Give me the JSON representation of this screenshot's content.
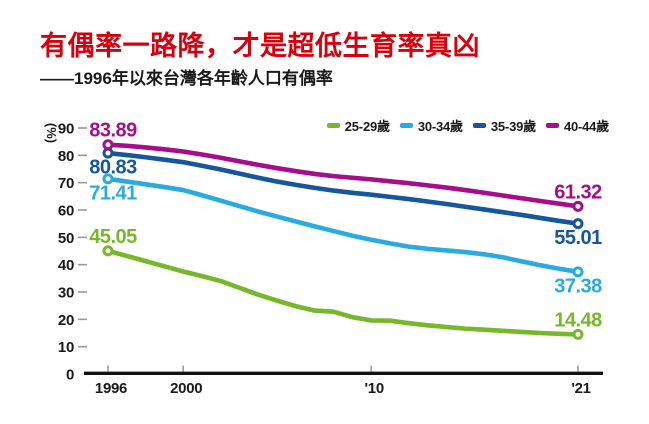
{
  "header": {
    "title": "有偶率一路降，才是超低生育率真凶",
    "subtitle": "——1996年以來台灣各年齡人口有偶率"
  },
  "colors": {
    "title_red": "#d7000f",
    "axis_black": "#111111",
    "tick_gray": "#999999",
    "green": "#76b82a",
    "cyan": "#29abe2",
    "dark_blue": "#15569c",
    "magenta": "#a60d8a"
  },
  "chart_data": {
    "type": "line",
    "title": "有偶率一路降，才是超低生育率真凶",
    "subtitle": "——1996年以來台灣各年齡人口有偶率",
    "unit_label": "(%)",
    "ylim": [
      0,
      90
    ],
    "y_ticks": [
      0,
      10,
      20,
      30,
      40,
      50,
      60,
      70,
      80,
      90
    ],
    "grid": false,
    "legend_position": "top-right",
    "x": [
      1996,
      1997,
      1998,
      1999,
      2000,
      2001,
      2002,
      2003,
      2004,
      2005,
      2006,
      2007,
      2008,
      2009,
      2010,
      2011,
      2012,
      2013,
      2014,
      2015,
      2016,
      2017,
      2018,
      2019,
      2020,
      2021
    ],
    "x_ticks": [
      {
        "year": 1996,
        "label": "1996"
      },
      {
        "year": 2000,
        "label": "2000"
      },
      {
        "year": 2010,
        "label": "'10"
      },
      {
        "year": 2021,
        "label": "'21"
      }
    ],
    "series": [
      {
        "name": "25-29歲",
        "color": "#76b82a",
        "start_label": "45.05",
        "end_label": "14.48",
        "label_side_start": "above",
        "label_side_end": "above",
        "values": [
          45.05,
          43.2,
          41.3,
          39.4,
          37.5,
          35.8,
          34.0,
          31.5,
          29.0,
          26.8,
          24.8,
          23.2,
          22.8,
          20.8,
          19.6,
          19.5,
          18.6,
          17.8,
          17.2,
          16.6,
          16.2,
          15.8,
          15.4,
          15.0,
          14.7,
          14.48
        ]
      },
      {
        "name": "30-34歲",
        "color": "#29abe2",
        "start_label": "71.41",
        "end_label": "37.38",
        "label_side_start": "below",
        "label_side_end": "below",
        "values": [
          71.41,
          70.4,
          69.4,
          68.4,
          67.3,
          65.4,
          63.4,
          61.4,
          59.4,
          57.6,
          55.8,
          54.0,
          52.3,
          50.6,
          49.1,
          47.8,
          46.6,
          45.8,
          45.2,
          44.6,
          43.8,
          42.7,
          41.2,
          39.8,
          38.5,
          37.38
        ]
      },
      {
        "name": "35-39歲",
        "color": "#15569c",
        "start_label": "80.83",
        "end_label": "55.01",
        "label_side_start": "below",
        "label_side_end": "below",
        "values": [
          80.83,
          80.1,
          79.3,
          78.4,
          77.5,
          76.2,
          74.8,
          73.3,
          71.8,
          70.4,
          69.2,
          68.1,
          67.1,
          66.3,
          65.6,
          64.8,
          64.0,
          63.1,
          62.2,
          61.2,
          60.2,
          59.2,
          58.2,
          57.1,
          56.0,
          55.01
        ]
      },
      {
        "name": "40-44歲",
        "color": "#a60d8a",
        "start_label": "83.89",
        "end_label": "61.32",
        "label_side_start": "above",
        "label_side_end": "above",
        "values": [
          83.89,
          83.5,
          82.9,
          82.2,
          81.4,
          80.3,
          79.1,
          77.8,
          76.5,
          75.3,
          74.2,
          73.2,
          72.4,
          71.8,
          71.2,
          70.5,
          69.8,
          69.0,
          68.2,
          67.3,
          66.3,
          65.3,
          64.3,
          63.3,
          62.3,
          61.32
        ]
      }
    ]
  }
}
